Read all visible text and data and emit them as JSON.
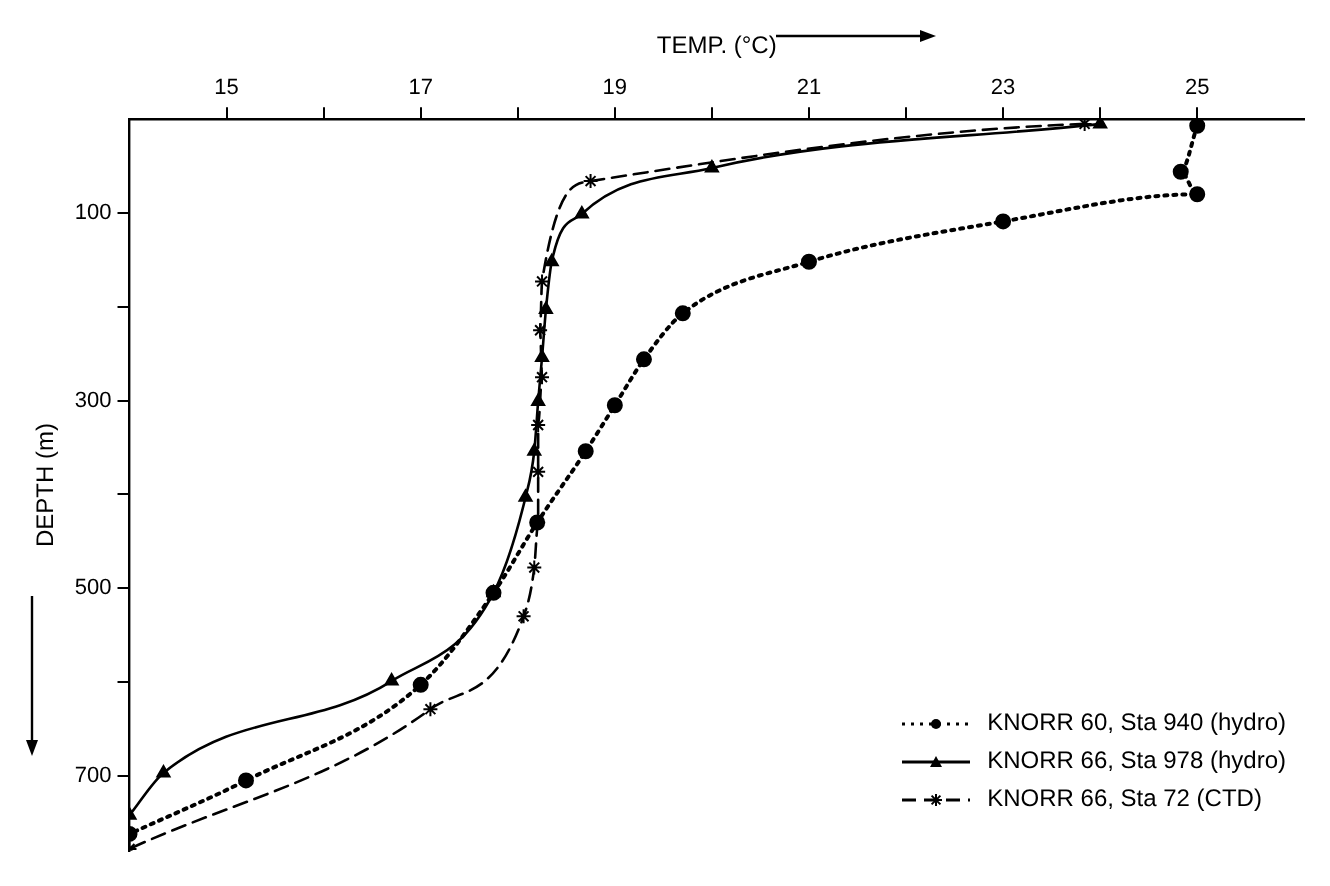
{
  "chart_data": {
    "type": "line",
    "xlabel": "TEMP. (°C)",
    "ylabel": "DEPTH (m)",
    "xlim": [
      14,
      26.1
    ],
    "xticks": [
      15,
      {
        "value": 16,
        "label": null
      },
      17,
      {
        "value": 18,
        "label": null
      },
      19,
      {
        "value": 20,
        "label": null
      },
      21,
      {
        "value": 22,
        "label": null
      },
      23,
      {
        "value": 24,
        "label": null
      },
      25
    ],
    "ylim": [
      780,
      0
    ],
    "yticks": [
      100,
      {
        "value": 200,
        "label": null
      },
      300,
      {
        "value": 400,
        "label": null
      },
      500,
      {
        "value": 600,
        "label": null
      },
      700
    ],
    "grid": false,
    "legend": "bottom right",
    "series": [
      {
        "name": "KNORR 60, Sta 940 (hydro)",
        "color": "#000000",
        "marker": "circle",
        "line_style": "dotted",
        "x": [
          25.0,
          24.83,
          25.0,
          23.0,
          21.0,
          19.7,
          19.3,
          19.0,
          18.7,
          18.2,
          17.75,
          17.0,
          15.2,
          14.0
        ],
        "values": [
          7,
          56,
          80,
          109,
          152,
          207,
          256,
          305,
          354,
          430,
          505,
          603,
          705,
          762
        ]
      },
      {
        "name": "KNORR 66, Sta 978 (hydro)",
        "color": "#000000",
        "marker": "triangle",
        "line_style": "solid",
        "x": [
          24.0,
          20.0,
          18.66,
          18.35,
          18.29,
          18.25,
          18.21,
          18.17,
          18.08,
          17.75,
          16.7,
          14.35,
          14.0
        ],
        "values": [
          5,
          52,
          101,
          152,
          203,
          254,
          301,
          354,
          403,
          505,
          599,
          697,
          742
        ]
      },
      {
        "name": "KNORR 66, Sta 72 (CTD)",
        "color": "#000000",
        "marker": "cross",
        "line_style": "dashed",
        "x": [
          23.84,
          18.75,
          18.25,
          18.23,
          18.25,
          18.21,
          18.21,
          18.21,
          18.17,
          18.06,
          17.1,
          14.0
        ],
        "values": [
          5,
          66,
          173,
          225,
          275,
          326,
          376,
          430,
          478,
          530,
          629,
          778
        ]
      }
    ]
  }
}
